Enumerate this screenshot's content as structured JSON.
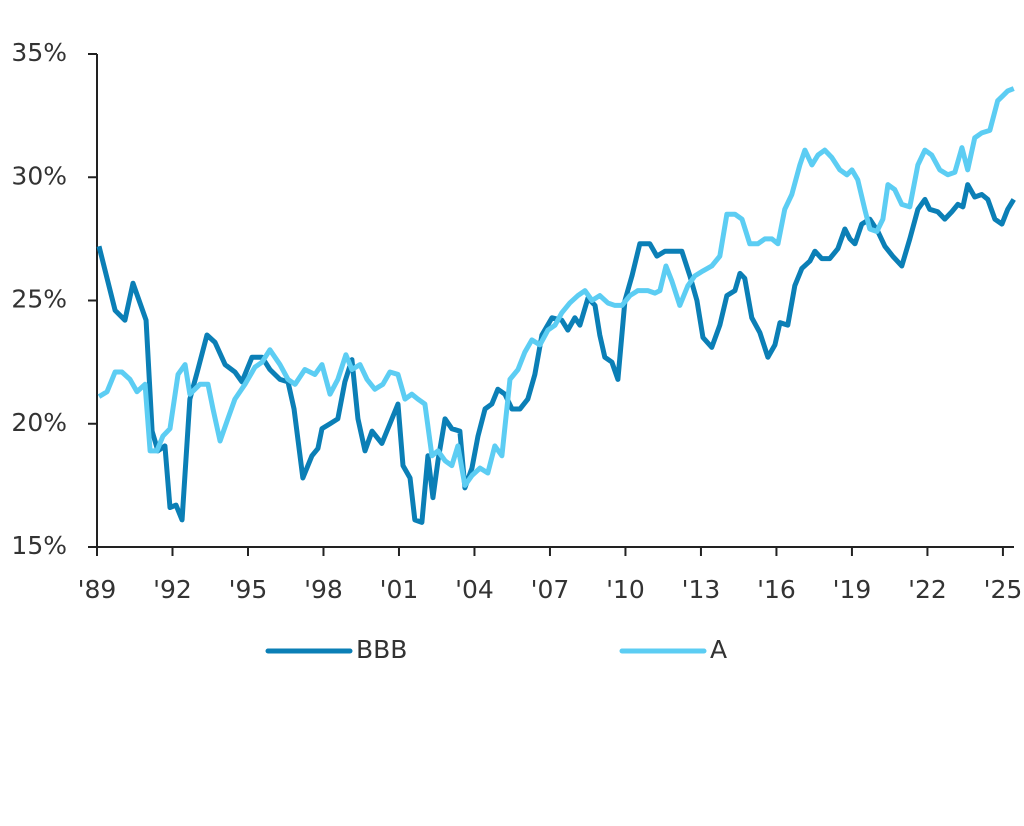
{
  "chart_data": {
    "type": "line",
    "xlim": [
      1989,
      2025.44
    ],
    "xticks": [
      {
        "value": 1989,
        "label": "'89"
      },
      {
        "value": 1992,
        "label": "'92"
      },
      {
        "value": 1995,
        "label": "'95"
      },
      {
        "value": 1998,
        "label": "'98"
      },
      {
        "value": 2001,
        "label": "'01"
      },
      {
        "value": 2004,
        "label": "'04"
      },
      {
        "value": 2007,
        "label": "'07"
      },
      {
        "value": 2010,
        "label": "'10"
      },
      {
        "value": 2013,
        "label": "'13"
      },
      {
        "value": 2016,
        "label": "'16"
      },
      {
        "value": 2019,
        "label": "'19"
      },
      {
        "value": 2022,
        "label": "'22"
      },
      {
        "value": 2025,
        "label": "'25"
      }
    ],
    "ylim": [
      15,
      35
    ],
    "yticks": [
      {
        "value": 15,
        "label": "15%"
      },
      {
        "value": 20,
        "label": "20%"
      },
      {
        "value": 25,
        "label": "25%"
      },
      {
        "value": 30,
        "label": "30%"
      },
      {
        "value": 35,
        "label": "35%"
      }
    ],
    "series": [
      {
        "name": "BBB",
        "color": "#0b7fb6",
        "x": [
          1989.08,
          1989.72,
          1990.11,
          1990.43,
          1990.95,
          1991.19,
          1991.42,
          1991.7,
          1991.9,
          1992.14,
          1992.38,
          1992.69,
          1993.01,
          1993.37,
          1993.69,
          1994.09,
          1994.48,
          1994.76,
          1995.16,
          1995.56,
          1995.87,
          1996.27,
          1996.59,
          1996.83,
          1997.18,
          1997.54,
          1997.78,
          1997.94,
          1998.26,
          1998.57,
          1998.85,
          1999.13,
          1999.37,
          1999.65,
          1999.93,
          2000.32,
          2000.72,
          2000.96,
          2001.16,
          2001.44,
          2001.63,
          2001.91,
          2002.15,
          2002.35,
          2002.55,
          2002.83,
          2003.1,
          2003.42,
          2003.62,
          2003.9,
          2004.14,
          2004.42,
          2004.69,
          2004.93,
          2005.21,
          2005.49,
          2005.81,
          2006.12,
          2006.4,
          2006.68,
          2007.08,
          2007.47,
          2007.71,
          2007.99,
          2008.19,
          2008.51,
          2008.79,
          2008.98,
          2009.18,
          2009.46,
          2009.7,
          2009.98,
          2010.26,
          2010.57,
          2010.97,
          2011.25,
          2011.57,
          2011.84,
          2012.24,
          2012.56,
          2012.84,
          2013.08,
          2013.43,
          2013.75,
          2014.03,
          2014.35,
          2014.55,
          2014.74,
          2015.02,
          2015.34,
          2015.66,
          2015.94,
          2016.14,
          2016.45,
          2016.73,
          2017.01,
          2017.33,
          2017.53,
          2017.8,
          2018.12,
          2018.44,
          2018.72,
          2018.92,
          2019.12,
          2019.39,
          2019.71,
          2020.03,
          2020.31,
          2020.62,
          2020.98,
          2021.3,
          2021.62,
          2021.9,
          2022.09,
          2022.41,
          2022.69,
          2022.97,
          2023.21,
          2023.41,
          2023.6,
          2023.88,
          2024.16,
          2024.4,
          2024.68,
          2024.96,
          2025.19,
          2025.43
        ],
        "values": [
          27.2,
          24.6,
          24.2,
          25.7,
          24.2,
          19.7,
          18.9,
          19.1,
          16.6,
          16.7,
          16.1,
          21.0,
          22.2,
          23.6,
          23.3,
          22.4,
          22.1,
          21.7,
          22.7,
          22.7,
          22.2,
          21.8,
          21.7,
          20.6,
          17.8,
          18.7,
          19.0,
          19.8,
          20.0,
          20.2,
          21.7,
          22.6,
          20.2,
          18.9,
          19.7,
          19.2,
          20.2,
          20.8,
          18.3,
          17.8,
          16.1,
          16.0,
          18.7,
          17.0,
          18.5,
          20.2,
          19.8,
          19.7,
          17.4,
          18.2,
          19.5,
          20.6,
          20.8,
          21.4,
          21.2,
          20.6,
          20.6,
          21.0,
          22.0,
          23.6,
          24.3,
          24.2,
          23.8,
          24.3,
          24.0,
          25.1,
          24.8,
          23.6,
          22.7,
          22.5,
          21.8,
          25.0,
          26.0,
          27.3,
          27.3,
          26.8,
          27.0,
          27.0,
          27.0,
          26.0,
          25.0,
          23.5,
          23.1,
          24.0,
          25.2,
          25.4,
          26.1,
          25.9,
          24.3,
          23.7,
          22.7,
          23.2,
          24.1,
          24.0,
          25.6,
          26.3,
          26.6,
          27.0,
          26.7,
          26.7,
          27.1,
          27.9,
          27.5,
          27.3,
          28.1,
          28.3,
          27.8,
          27.2,
          26.8,
          26.4,
          27.5,
          28.7,
          29.1,
          28.7,
          28.6,
          28.3,
          28.6,
          28.9,
          28.8,
          29.7,
          29.2,
          29.3,
          29.1,
          28.3,
          28.1,
          28.7,
          29.1
        ]
      },
      {
        "name": "A",
        "color": "#5ccdf3",
        "x": [
          1989.08,
          1989.4,
          1989.72,
          1989.99,
          1990.31,
          1990.59,
          1990.91,
          1991.11,
          1991.38,
          1991.62,
          1991.9,
          1992.22,
          1992.5,
          1992.69,
          1993.09,
          1993.41,
          1993.61,
          1993.89,
          1994.2,
          1994.48,
          1994.88,
          1995.28,
          1995.56,
          1995.87,
          1996.27,
          1996.59,
          1996.87,
          1997.26,
          1997.66,
          1997.94,
          1998.26,
          1998.57,
          1998.89,
          1999.13,
          1999.45,
          1999.73,
          2000.04,
          2000.36,
          2000.64,
          2000.96,
          2001.24,
          2001.51,
          2001.75,
          2002.03,
          2002.31,
          2002.55,
          2002.83,
          2003.1,
          2003.34,
          2003.62,
          2003.9,
          2004.22,
          2004.53,
          2004.81,
          2005.09,
          2005.41,
          2005.73,
          2006.0,
          2006.28,
          2006.6,
          2006.92,
          2007.2,
          2007.47,
          2007.79,
          2008.11,
          2008.39,
          2008.67,
          2008.98,
          2009.3,
          2009.58,
          2009.86,
          2010.18,
          2010.49,
          2010.89,
          2011.17,
          2011.37,
          2011.61,
          2011.84,
          2012.16,
          2012.48,
          2012.76,
          2013.08,
          2013.43,
          2013.75,
          2014.03,
          2014.35,
          2014.63,
          2014.94,
          2015.26,
          2015.54,
          2015.82,
          2016.06,
          2016.33,
          2016.61,
          2016.93,
          2017.13,
          2017.41,
          2017.65,
          2017.92,
          2018.2,
          2018.52,
          2018.8,
          2019.0,
          2019.23,
          2019.51,
          2019.71,
          2019.99,
          2020.23,
          2020.43,
          2020.7,
          2020.98,
          2021.3,
          2021.62,
          2021.9,
          2022.17,
          2022.49,
          2022.81,
          2023.09,
          2023.37,
          2023.6,
          2023.88,
          2024.16,
          2024.48,
          2024.79,
          2024.99,
          2025.19,
          2025.43
        ],
        "values": [
          21.1,
          21.3,
          22.1,
          22.1,
          21.8,
          21.3,
          21.6,
          18.9,
          18.9,
          19.5,
          19.8,
          22.0,
          22.4,
          21.2,
          21.6,
          21.6,
          20.6,
          19.3,
          20.2,
          21.0,
          21.6,
          22.3,
          22.5,
          23.0,
          22.4,
          21.8,
          21.6,
          22.2,
          22.0,
          22.4,
          21.2,
          21.8,
          22.8,
          22.2,
          22.4,
          21.8,
          21.4,
          21.6,
          22.1,
          22.0,
          21.0,
          21.2,
          21.0,
          20.8,
          18.7,
          18.9,
          18.5,
          18.3,
          19.1,
          17.5,
          17.9,
          18.2,
          18.0,
          19.1,
          18.7,
          21.8,
          22.2,
          22.9,
          23.4,
          23.2,
          23.8,
          24.0,
          24.5,
          24.9,
          25.2,
          25.4,
          25.0,
          25.2,
          24.9,
          24.8,
          24.8,
          25.2,
          25.4,
          25.4,
          25.3,
          25.4,
          26.4,
          25.8,
          24.8,
          25.6,
          26.0,
          26.2,
          26.4,
          26.8,
          28.5,
          28.5,
          28.3,
          27.3,
          27.3,
          27.5,
          27.5,
          27.3,
          28.7,
          29.3,
          30.5,
          31.1,
          30.5,
          30.9,
          31.1,
          30.8,
          30.3,
          30.1,
          30.3,
          29.9,
          28.7,
          27.9,
          27.8,
          28.3,
          29.7,
          29.5,
          28.9,
          28.8,
          30.5,
          31.1,
          30.9,
          30.3,
          30.1,
          30.2,
          31.2,
          30.3,
          31.6,
          31.8,
          31.9,
          33.1,
          33.3,
          33.5,
          33.6
        ]
      }
    ]
  }
}
